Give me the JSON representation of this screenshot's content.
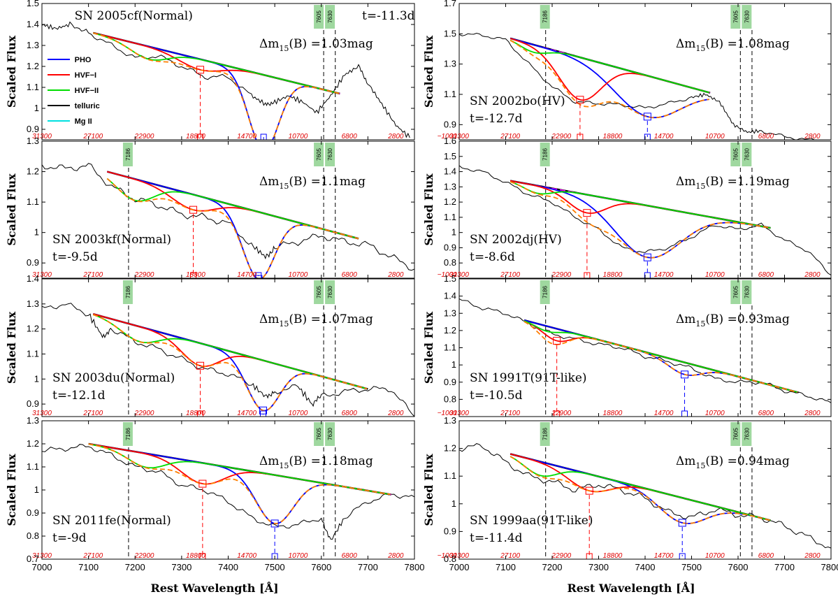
{
  "figure": {
    "xlabel": "Rest Wavelength [Å]",
    "ylabel": "Scaled Flux",
    "x_ticks": [
      7000,
      7100,
      7200,
      7300,
      7400,
      7500,
      7600,
      7700,
      7800
    ],
    "x_tick_labels_right": [
      "7000",
      "7100",
      "7200",
      "7300",
      "7400",
      "7500",
      "7600",
      "7700",
      "7800"
    ],
    "velocity_ticks": [
      "31300",
      "27100",
      "22900",
      "18800",
      "14700",
      "10700",
      "6800",
      "2800",
      "−1000"
    ],
    "telluric_bands": [
      "7186",
      "7605",
      "7630"
    ],
    "colors": {
      "PHO": "#0000ff",
      "HVF-I": "#ff0000",
      "HVF-II": "#00dd00",
      "telluric": "#000000",
      "Mg II": "#00e0e0",
      "fit": "#ff7f00",
      "continuum": "#ff00ff",
      "band": "#9fd89f",
      "velocity": "#e00000"
    }
  },
  "legend": {
    "items": [
      {
        "label": "PHO",
        "color": "#0000ff"
      },
      {
        "label": "HVF−I",
        "color": "#ff0000"
      },
      {
        "label": "HVF−II",
        "color": "#00dd00"
      },
      {
        "label": "telluric",
        "color": "#000000"
      },
      {
        "label": "Mg II",
        "color": "#00e0e0"
      }
    ]
  },
  "panels": [
    {
      "sn": "SN 2005cf(Normal)",
      "phase": "t=-11.3d",
      "dm15": "Δm15(B) =1.03mag",
      "dm15_value": "=1.03mag",
      "ylim": [
        0.85,
        1.5
      ],
      "yticks": [
        "0.9",
        "1",
        "1.1",
        "1.2",
        "1.3",
        "1.4",
        "1.5"
      ]
    },
    {
      "sn": "SN 2002bo(HV)",
      "phase": "t=-12.7d",
      "dm15": "Δm15(B) =1.08mag",
      "dm15_value": "=1.08mag",
      "ylim": [
        0.8,
        1.7
      ],
      "yticks": [
        "0.9",
        "1.1",
        "1.3",
        "1.5",
        "1.7"
      ]
    },
    {
      "sn": "SN 2003kf(Normal)",
      "phase": "t=-9.5d",
      "dm15": "Δm15(B) =1.1mag",
      "dm15_value": "=1.1mag",
      "ylim": [
        0.85,
        1.3
      ],
      "yticks": [
        "0.9",
        "1",
        "1.1",
        "1.2",
        "1.3"
      ]
    },
    {
      "sn": "SN 2002dj(HV)",
      "phase": "t=-8.6d",
      "dm15": "Δm15(B) =1.19mag",
      "dm15_value": "=1.19mag",
      "ylim": [
        0.7,
        1.6
      ],
      "yticks": [
        "0.8",
        "0.9",
        "1",
        "1.1",
        "1.2",
        "1.3",
        "1.4",
        "1.5",
        "1.6"
      ]
    },
    {
      "sn": "SN 2003du(Normal)",
      "phase": "t=-12.1d",
      "dm15": "Δm15(B) =1.07mag",
      "dm15_value": "=1.07mag",
      "ylim": [
        0.85,
        1.4
      ],
      "yticks": [
        "0.9",
        "1",
        "1.1",
        "1.2",
        "1.3",
        "1.4"
      ]
    },
    {
      "sn": "SN 1991T(91T-like)",
      "phase": "t=-10.5d",
      "dm15": "Δm15(B) =0.93mag",
      "dm15_value": "=0.93mag",
      "ylim": [
        0.7,
        1.5
      ],
      "yticks": [
        "0.8",
        "0.9",
        "1",
        "1.1",
        "1.2",
        "1.3",
        "1.4",
        "1.5"
      ]
    },
    {
      "sn": "SN 2011fe(Normal)",
      "phase": "t=-9d",
      "dm15": "Δm15(B) =1.18mag",
      "dm15_value": "=1.18mag",
      "ylim": [
        0.7,
        1.3
      ],
      "yticks": [
        "0.7",
        "0.8",
        "0.9",
        "1",
        "1.1",
        "1.2",
        "1.3"
      ]
    },
    {
      "sn": "SN 1999aa(91T-like)",
      "phase": "t=-11.4d",
      "dm15": "Δm15(B) =0.94mag",
      "dm15_value": "=0.94mag",
      "ylim": [
        0.8,
        1.3
      ],
      "yticks": [
        "0.8",
        "0.9",
        "1",
        "1.1",
        "1.2",
        "1.3"
      ]
    }
  ],
  "chart_data": {
    "type": "line",
    "xlabel": "Rest Wavelength [Å]",
    "ylabel": "Scaled Flux",
    "xlim": [
      7000,
      7800
    ],
    "series_names": [
      "PHO",
      "HVF−I",
      "HVF−II",
      "telluric",
      "Mg II"
    ],
    "panels": [
      {
        "name": "SN 2005cf(Normal)",
        "ylim": [
          0.85,
          1.5
        ],
        "continuum": {
          "x": [
            7110,
            7640
          ],
          "y": [
            1.36,
            1.07
          ]
        },
        "flux_x": [
          7000,
          7030,
          7060,
          7100,
          7150,
          7200,
          7250,
          7300,
          7350,
          7400,
          7450,
          7480,
          7500,
          7530,
          7560,
          7590,
          7620,
          7650,
          7680,
          7700,
          7730,
          7760,
          7790
        ],
        "flux_y": [
          1.4,
          1.38,
          1.4,
          1.36,
          1.3,
          1.24,
          1.25,
          1.2,
          1.15,
          1.15,
          1.06,
          1.02,
          1.03,
          1.06,
          1.03,
          0.98,
          1.06,
          1.16,
          1.2,
          1.12,
          1.02,
          0.92,
          0.86
        ],
        "components": [
          {
            "label": "PHO",
            "center": 7476,
            "depth": 0.36,
            "width": 32
          },
          {
            "label": "HVF−I",
            "center": 7340,
            "depth": 0.05,
            "width": 45
          },
          {
            "label": "HVF−II",
            "center": 7230,
            "depth": 0.06,
            "width": 40
          }
        ]
      },
      {
        "name": "SN 2002bo(HV)",
        "ylim": [
          0.8,
          1.7
        ],
        "continuum": {
          "x": [
            7110,
            7540
          ],
          "y": [
            1.47,
            1.11
          ]
        },
        "flux_x": [
          7000,
          7050,
          7100,
          7150,
          7200,
          7250,
          7300,
          7350,
          7400,
          7450,
          7500,
          7530,
          7560,
          7590,
          7620,
          7650,
          7700,
          7750,
          7800
        ],
        "flux_y": [
          1.5,
          1.49,
          1.46,
          1.3,
          1.15,
          1.05,
          1.04,
          1.03,
          1.01,
          1.04,
          1.08,
          1.1,
          1.05,
          0.9,
          0.85,
          0.86,
          0.82,
          0.8,
          0.8
        ],
        "components": [
          {
            "label": "PHO",
            "center": 7405,
            "depth": 0.27,
            "width": 70
          },
          {
            "label": "HVF−I",
            "center": 7260,
            "depth": 0.28,
            "width": 45
          },
          {
            "label": "HVF−II",
            "center": 7160,
            "depth": 0.05,
            "width": 30
          }
        ]
      },
      {
        "name": "SN 2003kf(Normal)",
        "ylim": [
          0.85,
          1.3
        ],
        "continuum": {
          "x": [
            7140,
            7680
          ],
          "y": [
            1.2,
            0.98
          ]
        },
        "flux_x": [
          7000,
          7050,
          7100,
          7150,
          7200,
          7250,
          7300,
          7350,
          7400,
          7450,
          7480,
          7500,
          7550,
          7600,
          7650,
          7700,
          7750,
          7800
        ],
        "flux_y": [
          1.22,
          1.21,
          1.22,
          1.15,
          1.11,
          1.09,
          1.06,
          1.05,
          1.03,
          0.96,
          0.92,
          0.95,
          0.97,
          0.99,
          0.97,
          0.96,
          0.92,
          0.88
        ],
        "components": [
          {
            "label": "PHO",
            "center": 7465,
            "depth": 0.22,
            "width": 34
          },
          {
            "label": "HVF−I",
            "center": 7325,
            "depth": 0.05,
            "width": 45
          },
          {
            "label": "HVF−II",
            "center": 7200,
            "depth": 0.07,
            "width": 40
          }
        ]
      },
      {
        "name": "SN 2002dj(HV)",
        "ylim": [
          0.7,
          1.6
        ],
        "continuum": {
          "x": [
            7110,
            7670
          ],
          "y": [
            1.34,
            1.03
          ]
        },
        "flux_x": [
          7000,
          7050,
          7100,
          7150,
          7200,
          7250,
          7300,
          7350,
          7400,
          7450,
          7500,
          7550,
          7600,
          7650,
          7700,
          7750,
          7800
        ],
        "flux_y": [
          1.43,
          1.4,
          1.33,
          1.25,
          1.2,
          1.1,
          1.02,
          0.9,
          0.87,
          0.9,
          0.97,
          1.05,
          1.02,
          1.05,
          0.95,
          0.88,
          0.72
        ],
        "components": [
          {
            "label": "PHO",
            "center": 7405,
            "depth": 0.34,
            "width": 70
          },
          {
            "label": "HVF−I",
            "center": 7275,
            "depth": 0.12,
            "width": 40
          },
          {
            "label": "HVF−II",
            "center": 7170,
            "depth": 0.05,
            "width": 30
          }
        ]
      },
      {
        "name": "SN 2003du(Normal)",
        "ylim": [
          0.85,
          1.4
        ],
        "continuum": {
          "x": [
            7110,
            7700
          ],
          "y": [
            1.26,
            0.96
          ]
        },
        "flux_x": [
          7000,
          7050,
          7100,
          7130,
          7150,
          7200,
          7250,
          7300,
          7350,
          7400,
          7450,
          7480,
          7500,
          7550,
          7580,
          7600,
          7650,
          7700,
          7750,
          7800
        ],
        "flux_y": [
          1.28,
          1.3,
          1.26,
          1.17,
          1.2,
          1.15,
          1.12,
          1.08,
          1.04,
          1.02,
          0.98,
          0.93,
          0.95,
          0.97,
          0.9,
          0.93,
          0.95,
          0.96,
          0.96,
          0.85
        ],
        "components": [
          {
            "label": "PHO",
            "center": 7475,
            "depth": 0.2,
            "width": 35
          },
          {
            "label": "HVF−I",
            "center": 7340,
            "depth": 0.09,
            "width": 40
          },
          {
            "label": "HVF−II",
            "center": 7210,
            "depth": 0.06,
            "width": 40
          }
        ]
      },
      {
        "name": "SN 1991T(91T-like)",
        "ylim": [
          0.7,
          1.5
        ],
        "continuum": {
          "x": [
            7140,
            7730
          ],
          "y": [
            1.26,
            0.84
          ]
        },
        "flux_x": [
          7000,
          7050,
          7100,
          7150,
          7200,
          7250,
          7300,
          7350,
          7400,
          7450,
          7500,
          7550,
          7600,
          7650,
          7700,
          7750,
          7800
        ],
        "flux_y": [
          1.38,
          1.33,
          1.3,
          1.24,
          1.18,
          1.15,
          1.12,
          1.1,
          1.05,
          1.02,
          0.98,
          0.92,
          0.9,
          0.9,
          0.85,
          0.82,
          0.78
        ],
        "components": [
          {
            "label": "PHO",
            "center": 7485,
            "depth": 0.07,
            "width": 35
          },
          {
            "label": "HVF−I",
            "center": 7210,
            "depth": 0.07,
            "width": 30
          },
          {
            "label": "HVF−II",
            "center": 7190,
            "depth": 0.03,
            "width": 25
          }
        ]
      },
      {
        "name": "SN 2011fe(Normal)",
        "ylim": [
          0.7,
          1.3
        ],
        "continuum": {
          "x": [
            7100,
            7750
          ],
          "y": [
            1.2,
            0.98
          ]
        },
        "flux_x": [
          7000,
          7050,
          7100,
          7150,
          7200,
          7250,
          7300,
          7350,
          7400,
          7450,
          7500,
          7550,
          7600,
          7620,
          7650,
          7700,
          7750,
          7800
        ],
        "flux_y": [
          1.17,
          1.18,
          1.19,
          1.15,
          1.1,
          1.08,
          1.02,
          1.0,
          0.95,
          0.88,
          0.84,
          0.85,
          0.88,
          0.78,
          0.88,
          0.95,
          0.98,
          0.97
        ],
        "components": [
          {
            "label": "PHO",
            "center": 7500,
            "depth": 0.21,
            "width": 40
          },
          {
            "label": "HVF−I",
            "center": 7345,
            "depth": 0.09,
            "width": 45
          },
          {
            "label": "HVF−II",
            "center": 7225,
            "depth": 0.06,
            "width": 40
          }
        ]
      },
      {
        "name": "SN 1999aa(91T-like)",
        "ylim": [
          0.8,
          1.3
        ],
        "continuum": {
          "x": [
            7110,
            7670
          ],
          "y": [
            1.18,
            0.94
          ]
        },
        "flux_x": [
          7000,
          7050,
          7100,
          7150,
          7200,
          7250,
          7300,
          7350,
          7400,
          7450,
          7500,
          7550,
          7600,
          7650,
          7700,
          7750,
          7800
        ],
        "flux_y": [
          1.2,
          1.21,
          1.15,
          1.1,
          1.08,
          1.05,
          1.07,
          1.05,
          1.02,
          0.97,
          0.95,
          0.98,
          0.96,
          0.95,
          0.92,
          0.88,
          0.84
        ],
        "components": [
          {
            "label": "PHO",
            "center": 7480,
            "depth": 0.09,
            "width": 50
          },
          {
            "label": "HVF−I",
            "center": 7280,
            "depth": 0.06,
            "width": 45
          },
          {
            "label": "HVF−II",
            "center": 7175,
            "depth": 0.05,
            "width": 35
          }
        ]
      }
    ]
  }
}
